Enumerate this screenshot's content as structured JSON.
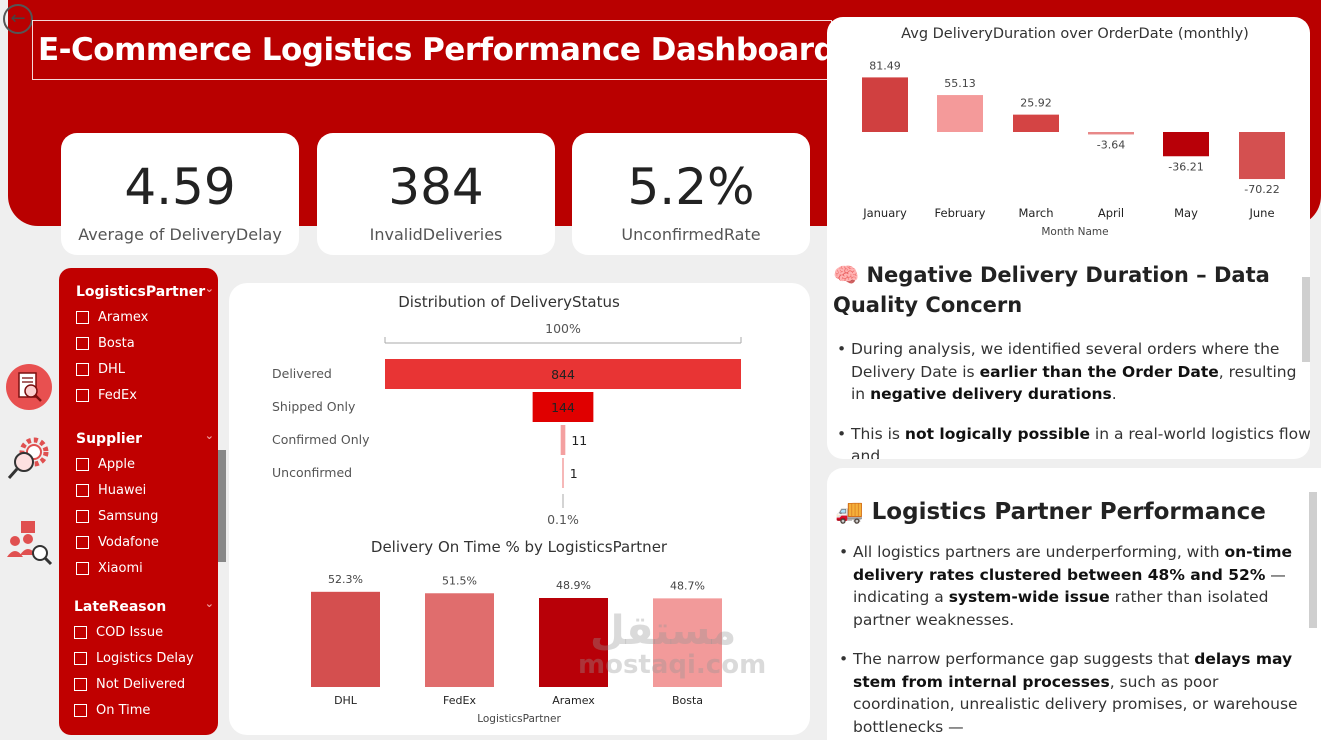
{
  "header": {
    "title": "E-Commerce Logistics Performance Dashboard"
  },
  "kpis": [
    {
      "value": "4.59",
      "label": "Average of DeliveryDelay"
    },
    {
      "value": "384",
      "label": "InvalidDeliveries"
    },
    {
      "value": "5.2%",
      "label": "UnconfirmedRate"
    }
  ],
  "slicers": [
    {
      "title": "LogisticsPartner",
      "items": [
        "Aramex",
        "Bosta",
        "DHL",
        "FedEx"
      ]
    },
    {
      "title": "Supplier",
      "items": [
        "Apple",
        "Huawei",
        "Samsung",
        "Vodafone",
        "Xiaomi"
      ]
    },
    {
      "title": "LateReason",
      "items": [
        "COD Issue",
        "Logistics Delay",
        "Not Delivered",
        "On Time"
      ]
    }
  ],
  "nav_icons": [
    "report-icon",
    "gear-search-icon",
    "people-search-icon"
  ],
  "chart_data": [
    {
      "type": "bar",
      "orientation": "horizontal-funnel",
      "title": "Distribution of DeliveryStatus",
      "categories": [
        "Delivered",
        "Shipped Only",
        "Confirmed Only",
        "Unconfirmed"
      ],
      "values": [
        844,
        144,
        11,
        1
      ],
      "top_label": "100%",
      "bottom_label": "0.1%",
      "colors": [
        "#e83434",
        "#e00000",
        "#f4a0a0",
        "#f4a0a0"
      ]
    },
    {
      "type": "bar",
      "title": "Delivery On Time % by LogisticsPartner",
      "xlabel": "LogisticsPartner",
      "categories": [
        "DHL",
        "FedEx",
        "Aramex",
        "Bosta"
      ],
      "values": [
        52.3,
        51.5,
        48.9,
        48.7
      ],
      "labels": [
        "52.3%",
        "51.5%",
        "48.9%",
        "48.7%"
      ],
      "colors": [
        "#d44f4f",
        "#e06d6d",
        "#b80008",
        "#f29a9a"
      ]
    },
    {
      "type": "bar",
      "title": "Avg DeliveryDuration over OrderDate (monthly)",
      "xlabel": "Month Name",
      "categories": [
        "January",
        "February",
        "March",
        "April",
        "May",
        "June"
      ],
      "values": [
        81.49,
        55.13,
        25.92,
        -3.64,
        -36.21,
        -70.22
      ],
      "labels": [
        "81.49",
        "55.13",
        "25.92",
        "-3.64",
        "-36.21",
        "-70.22"
      ],
      "colors": [
        "#d04040",
        "#f49a9a",
        "#d44444",
        "#e88888",
        "#b80008",
        "#d45050"
      ]
    }
  ],
  "notes": [
    {
      "emoji": "🧠",
      "title": "Negative Delivery Duration – Data Quality Concern",
      "paragraphs": [
        [
          "During analysis, we identified several orders where the Delivery Date is ",
          "earlier than the Order Date",
          ", resulting in ",
          "negative delivery durations",
          "."
        ],
        [
          "This is ",
          "not logically possible",
          " in a real-world logistics flow and",
          "",
          ""
        ]
      ]
    },
    {
      "emoji": "🚚",
      "title": "Logistics Partner Performance",
      "paragraphs": [
        [
          "All logistics partners are underperforming, with ",
          "on-time delivery rates clustered between 48% and 52%",
          " — indicating a ",
          "system-wide issue",
          " rather than isolated partner weaknesses."
        ],
        [
          "The narrow performance gap suggests that ",
          "delays may stem from internal processes",
          ", such as poor coordination, unrealistic delivery promises, or warehouse bottlenecks —",
          "",
          ""
        ]
      ]
    }
  ],
  "watermark": {
    "latin": "mostaqi.com",
    "arabic": "مستقل"
  }
}
